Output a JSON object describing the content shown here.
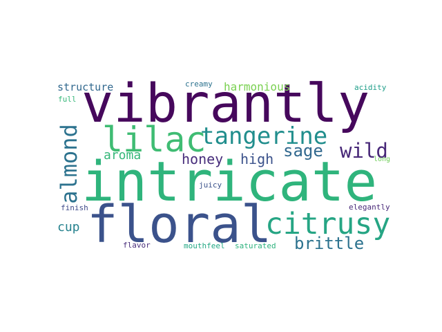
{
  "words": [
    {
      "key": "vibrantly",
      "text": "vibrantly",
      "color": "#46085c"
    },
    {
      "key": "intricate",
      "text": "intricate",
      "color": "#2fb47c"
    },
    {
      "key": "floral",
      "text": "floral",
      "color": "#3b528b"
    },
    {
      "key": "citrusy",
      "text": "citrusy",
      "color": "#26a584"
    },
    {
      "key": "tangerine",
      "text": "tangerine",
      "color": "#218e8d"
    },
    {
      "key": "lilac",
      "text": "lilac",
      "color": "#3fbc73"
    },
    {
      "key": "almond",
      "text": "almond",
      "color": "#2c728e"
    },
    {
      "key": "wild",
      "text": "wild",
      "color": "#482878"
    },
    {
      "key": "sage",
      "text": "sage",
      "color": "#31688e"
    },
    {
      "key": "brittle",
      "text": "brittle",
      "color": "#2c728e"
    },
    {
      "key": "honey",
      "text": "honey",
      "color": "#472d7b"
    },
    {
      "key": "high",
      "text": "high",
      "color": "#3b528b"
    },
    {
      "key": "aroma",
      "text": "aroma",
      "color": "#35b779"
    },
    {
      "key": "harmonious",
      "text": "harmonious",
      "color": "#7ad151"
    },
    {
      "key": "structure",
      "text": "structure",
      "color": "#31688e"
    },
    {
      "key": "cup",
      "text": "cup",
      "color": "#26828e"
    },
    {
      "key": "creamy",
      "text": "creamy",
      "color": "#2c728e"
    },
    {
      "key": "acidity",
      "text": "acidity",
      "color": "#1f9e89"
    },
    {
      "key": "full",
      "text": "full",
      "color": "#35b779"
    },
    {
      "key": "long",
      "text": "long",
      "color": "#6ece58"
    },
    {
      "key": "juicy",
      "text": "juicy",
      "color": "#3b528b"
    },
    {
      "key": "finish",
      "text": "finish",
      "color": "#3e4989"
    },
    {
      "key": "elegantly",
      "text": "elegantly",
      "color": "#482878"
    },
    {
      "key": "flavor",
      "text": "flavor",
      "color": "#472c7a"
    },
    {
      "key": "mouthfeel",
      "text": "mouthfeel",
      "color": "#22a884"
    },
    {
      "key": "saturated",
      "text": "saturated",
      "color": "#2db27d"
    }
  ]
}
